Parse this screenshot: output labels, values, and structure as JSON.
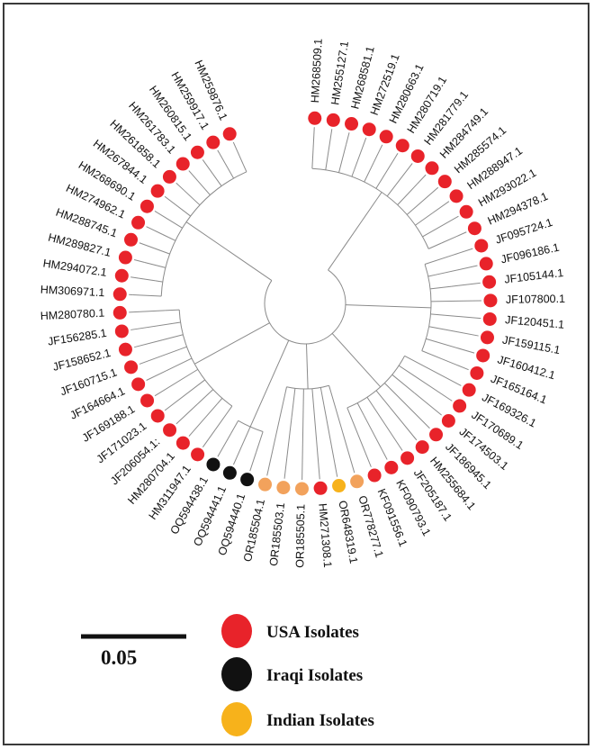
{
  "colors": {
    "usa": "#e8232a",
    "iraqi": "#111111",
    "indian": "#f7b21b",
    "indian_light": "#f2a25c",
    "branch": "#8a8a8a"
  },
  "scale_bar": {
    "label": "0.05"
  },
  "legend": [
    {
      "label": "USA Isolates",
      "group": "usa"
    },
    {
      "label": "Iraqi Isolates",
      "group": "iraqi"
    },
    {
      "label": "Indian Isolates",
      "group": "indian"
    }
  ],
  "tips": [
    {
      "label": "HM268509.1",
      "group": "usa"
    },
    {
      "label": "HM255127.1",
      "group": "usa"
    },
    {
      "label": "HM268581.1",
      "group": "usa"
    },
    {
      "label": "HM272519.1",
      "group": "usa"
    },
    {
      "label": "HM280663.1",
      "group": "usa"
    },
    {
      "label": "HM280719.1",
      "group": "usa"
    },
    {
      "label": "HM281779.1",
      "group": "usa"
    },
    {
      "label": "HM284749.1",
      "group": "usa"
    },
    {
      "label": "HM285574.1",
      "group": "usa"
    },
    {
      "label": "HM288947.1",
      "group": "usa"
    },
    {
      "label": "HM293022.1",
      "group": "usa"
    },
    {
      "label": "HM294378.1",
      "group": "usa"
    },
    {
      "label": "JF095724.1",
      "group": "usa"
    },
    {
      "label": "JF096186.1",
      "group": "usa"
    },
    {
      "label": "JF105144.1",
      "group": "usa"
    },
    {
      "label": "JF107800.1",
      "group": "usa"
    },
    {
      "label": "JF120451.1",
      "group": "usa"
    },
    {
      "label": "JF159115.1",
      "group": "usa"
    },
    {
      "label": "JF160412.1",
      "group": "usa"
    },
    {
      "label": "JF165164.1",
      "group": "usa"
    },
    {
      "label": "JF169326.1",
      "group": "usa"
    },
    {
      "label": "JF170689.1",
      "group": "usa"
    },
    {
      "label": "JF174503.1",
      "group": "usa"
    },
    {
      "label": "JF186945.1",
      "group": "usa"
    },
    {
      "label": "HM255684.1",
      "group": "usa"
    },
    {
      "label": "JF205187.1",
      "group": "usa"
    },
    {
      "label": "KF090793.1",
      "group": "usa"
    },
    {
      "label": "KF091556.1",
      "group": "usa"
    },
    {
      "label": "OR778277.1",
      "group": "indian_light"
    },
    {
      "label": "OR648319.1",
      "group": "indian"
    },
    {
      "label": "HM271308.1",
      "group": "usa"
    },
    {
      "label": "OR185505.1",
      "group": "indian_light"
    },
    {
      "label": "OR185503.1",
      "group": "indian_light"
    },
    {
      "label": "OR185504.1",
      "group": "indian_light"
    },
    {
      "label": "OQ594440.1",
      "group": "iraqi"
    },
    {
      "label": "OQ594441.1",
      "group": "iraqi"
    },
    {
      "label": "OQ594438.1",
      "group": "iraqi"
    },
    {
      "label": "HM311947.1",
      "group": "usa"
    },
    {
      "label": "HM280704.1",
      "group": "usa"
    },
    {
      "label": "JF206054.1:",
      "group": "usa"
    },
    {
      "label": "JF171023.1",
      "group": "usa"
    },
    {
      "label": "JF169188.1",
      "group": "usa"
    },
    {
      "label": "JF164664.1",
      "group": "usa"
    },
    {
      "label": "JF160715.1",
      "group": "usa"
    },
    {
      "label": "JF158652.1",
      "group": "usa"
    },
    {
      "label": "JF156285.1",
      "group": "usa"
    },
    {
      "label": "HM280780.1",
      "group": "usa"
    },
    {
      "label": "HM306971.1",
      "group": "usa"
    },
    {
      "label": "HM294072.1",
      "group": "usa"
    },
    {
      "label": "HM289827.1",
      "group": "usa"
    },
    {
      "label": "HM288745.1",
      "group": "usa"
    },
    {
      "label": "HM274962.1",
      "group": "usa"
    },
    {
      "label": "HM268690.1",
      "group": "usa"
    },
    {
      "label": "HM267844.1",
      "group": "usa"
    },
    {
      "label": "HM261858.1",
      "group": "usa"
    },
    {
      "label": "HM261783.1",
      "group": "usa"
    },
    {
      "label": "HM260815.1",
      "group": "usa"
    },
    {
      "label": "HM259917.1",
      "group": "usa"
    },
    {
      "label": "HM259876.1",
      "group": "usa"
    }
  ]
}
